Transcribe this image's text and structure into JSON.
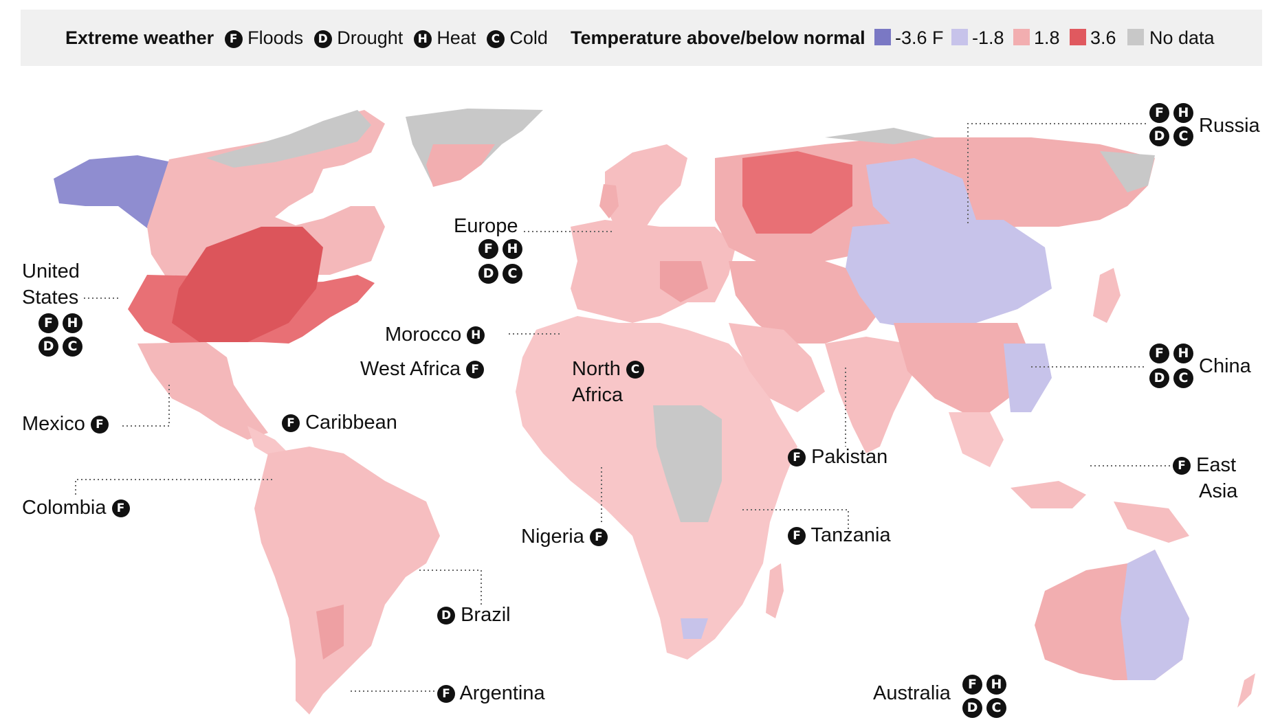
{
  "legend": {
    "extreme_title": "Extreme weather",
    "items": [
      {
        "badge": "F",
        "label": "Floods"
      },
      {
        "badge": "D",
        "label": "Drought"
      },
      {
        "badge": "H",
        "label": "Heat"
      },
      {
        "badge": "C",
        "label": "Cold"
      }
    ],
    "temp_title": "Temperature above/below normal",
    "scale": [
      {
        "label": "-3.6 F",
        "color": "#7a78c4"
      },
      {
        "label": "-1.8",
        "color": "#c7c3ea"
      },
      {
        "label": "1.8",
        "color": "#f2aeb0"
      },
      {
        "label": "3.6",
        "color": "#e0595f"
      },
      {
        "label": "No data",
        "color": "#c8c8c8"
      }
    ]
  },
  "colors": {
    "land_warm_light": "#f8c6c8",
    "land_warm": "#f2aeb0",
    "land_hot": "#e0595f",
    "land_cool": "#c7c3ea",
    "land_cold": "#7a78c4",
    "no_data": "#c8c8c8",
    "leader": "#666666"
  },
  "labels": {
    "united_states": {
      "line1": "United",
      "line2": "States",
      "badges": [
        "F",
        "H",
        "D",
        "C"
      ]
    },
    "mexico": {
      "name": "Mexico",
      "badges": [
        "F"
      ]
    },
    "colombia": {
      "name": "Colombia",
      "badges": [
        "F"
      ]
    },
    "caribbean": {
      "name": "Caribbean",
      "badges": [
        "F"
      ]
    },
    "brazil": {
      "name": "Brazil",
      "badges": [
        "D"
      ]
    },
    "argentina": {
      "name": "Argentina",
      "badges": [
        "F"
      ]
    },
    "europe": {
      "name": "Europe",
      "badges": [
        "F",
        "H",
        "D",
        "C"
      ]
    },
    "morocco": {
      "name": "Morocco",
      "badges": [
        "H"
      ]
    },
    "west_africa": {
      "name": "West Africa",
      "badges": [
        "F"
      ]
    },
    "north_africa": {
      "line1": "North",
      "line2": "Africa",
      "badges": [
        "C"
      ]
    },
    "nigeria": {
      "name": "Nigeria",
      "badges": [
        "F"
      ]
    },
    "pakistan": {
      "name": "Pakistan",
      "badges": [
        "F"
      ]
    },
    "tanzania": {
      "name": "Tanzania",
      "badges": [
        "F"
      ]
    },
    "russia": {
      "name": "Russia",
      "badges": [
        "F",
        "H",
        "D",
        "C"
      ]
    },
    "china": {
      "name": "China",
      "badges": [
        "F",
        "H",
        "D",
        "C"
      ]
    },
    "east_asia": {
      "line1": "East",
      "line2": "Asia",
      "badges": [
        "F"
      ]
    },
    "australia": {
      "name": "Australia",
      "badges": [
        "F",
        "H",
        "D",
        "C"
      ]
    }
  }
}
